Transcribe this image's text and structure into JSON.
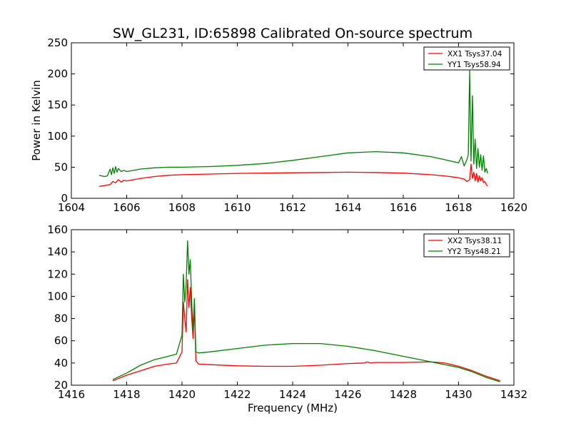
{
  "title": "SW_GL231, ID:65898 Calibrated On-source spectrum",
  "chart_data": [
    {
      "type": "line",
      "title": "SW_GL231, ID:65898 Calibrated On-source spectrum",
      "xlabel": "",
      "ylabel": "Power in Kelvin",
      "xlim": [
        1604,
        1620
      ],
      "ylim": [
        0,
        250
      ],
      "xticks": [
        1604,
        1606,
        1608,
        1610,
        1612,
        1614,
        1616,
        1618,
        1620
      ],
      "yticks": [
        0,
        50,
        100,
        150,
        200,
        250
      ],
      "grid": false,
      "legend_position": "top-right",
      "series": [
        {
          "name": "XX1 Tsys37.04",
          "color": "#ff0000",
          "x": [
            1605.0,
            1605.4,
            1605.5,
            1605.6,
            1605.7,
            1605.8,
            1605.9,
            1606.0,
            1606.5,
            1607.0,
            1607.5,
            1608.0,
            1609.0,
            1610.0,
            1611.0,
            1612.0,
            1613.0,
            1614.0,
            1615.0,
            1616.0,
            1617.0,
            1617.5,
            1618.0,
            1618.2,
            1618.3,
            1618.4,
            1618.45,
            1618.5,
            1618.55,
            1618.6,
            1618.65,
            1618.7,
            1618.75,
            1618.8,
            1618.85,
            1618.9,
            1618.95,
            1619.0,
            1619.05
          ],
          "values": [
            19,
            22,
            27,
            25,
            30,
            26,
            29,
            28,
            32,
            35,
            37,
            38,
            39,
            40,
            40.5,
            41,
            41.5,
            42,
            41.5,
            40.5,
            38,
            36,
            33,
            31,
            27,
            30,
            55,
            32,
            42,
            28,
            40,
            26,
            36,
            28,
            33,
            25,
            27,
            22,
            20
          ]
        },
        {
          "name": "YY1 Tsys58.94",
          "color": "#008000",
          "x": [
            1605.0,
            1605.2,
            1605.3,
            1605.4,
            1605.45,
            1605.5,
            1605.55,
            1605.6,
            1605.65,
            1605.7,
            1605.8,
            1605.9,
            1606.0,
            1606.5,
            1607.0,
            1607.5,
            1608.0,
            1609.0,
            1610.0,
            1611.0,
            1612.0,
            1613.0,
            1614.0,
            1615.0,
            1616.0,
            1617.0,
            1617.5,
            1618.0,
            1618.1,
            1618.2,
            1618.3,
            1618.35,
            1618.4,
            1618.45,
            1618.5,
            1618.55,
            1618.6,
            1618.65,
            1618.7,
            1618.75,
            1618.8,
            1618.85,
            1618.9,
            1618.95,
            1619.0,
            1619.05
          ],
          "values": [
            37,
            35,
            36,
            47,
            38,
            49,
            40,
            51,
            42,
            48,
            43,
            45,
            43,
            47,
            49,
            50,
            50,
            51,
            53,
            56,
            61,
            67,
            73,
            75,
            73,
            67,
            62,
            57,
            67,
            52,
            62,
            70,
            205,
            60,
            165,
            55,
            95,
            48,
            80,
            50,
            70,
            45,
            68,
            42,
            48,
            40
          ]
        }
      ]
    },
    {
      "type": "line",
      "title": "",
      "xlabel": "Frequency (MHz)",
      "ylabel": "",
      "xlim": [
        1416,
        1432
      ],
      "ylim": [
        20,
        160
      ],
      "xticks": [
        1416,
        1418,
        1420,
        1422,
        1424,
        1426,
        1428,
        1430,
        1432
      ],
      "yticks": [
        20,
        40,
        60,
        80,
        100,
        120,
        140,
        160
      ],
      "grid": false,
      "legend_position": "top-right",
      "series": [
        {
          "name": "XX2 Tsys38.11",
          "color": "#ff0000",
          "x": [
            1417.5,
            1418.0,
            1418.5,
            1419.0,
            1419.5,
            1419.8,
            1420.0,
            1420.05,
            1420.1,
            1420.15,
            1420.2,
            1420.25,
            1420.3,
            1420.35,
            1420.4,
            1420.45,
            1420.5,
            1420.6,
            1421.0,
            1422.0,
            1423.0,
            1424.0,
            1425.0,
            1426.0,
            1426.6,
            1426.7,
            1426.8,
            1427.0,
            1428.0,
            1429.0,
            1429.5,
            1430.0,
            1430.5,
            1431.0,
            1431.5
          ],
          "values": [
            24,
            29,
            33,
            37,
            39,
            40,
            50,
            95,
            80,
            68,
            115,
            90,
            108,
            80,
            62,
            90,
            42,
            39,
            38.5,
            37.5,
            37,
            37,
            38,
            39.5,
            40,
            41,
            40,
            40.5,
            40.5,
            41,
            40,
            37,
            33,
            28,
            24
          ]
        },
        {
          "name": "YY2 Tsys48.21",
          "color": "#008000",
          "x": [
            1417.5,
            1418.0,
            1418.5,
            1419.0,
            1419.5,
            1419.8,
            1420.0,
            1420.05,
            1420.1,
            1420.15,
            1420.2,
            1420.25,
            1420.3,
            1420.35,
            1420.4,
            1420.45,
            1420.5,
            1420.6,
            1421.0,
            1422.0,
            1423.0,
            1424.0,
            1425.0,
            1426.0,
            1427.0,
            1428.0,
            1429.0,
            1430.0,
            1430.5,
            1431.0,
            1431.5
          ],
          "values": [
            25,
            31,
            38,
            43,
            46,
            48,
            65,
            120,
            95,
            110,
            150,
            120,
            133,
            95,
            70,
            98,
            50,
            49,
            50,
            53,
            56,
            57.5,
            57.5,
            55,
            51,
            46,
            41,
            36,
            32,
            27,
            23
          ]
        }
      ]
    }
  ]
}
